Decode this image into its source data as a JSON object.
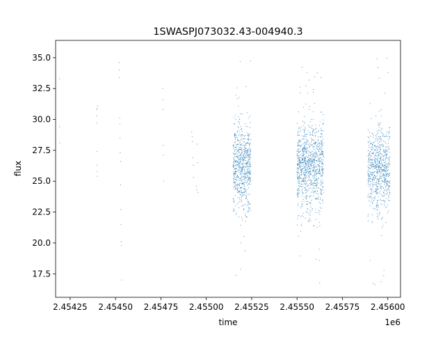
{
  "chart_data": {
    "type": "scatter",
    "title": "1SWASPJ073032.43-004940.3",
    "xlabel": "time",
    "ylabel": "flux",
    "x_offset_label": "1e6",
    "xlim": [
      2454170,
      2456070
    ],
    "ylim": [
      15.6,
      36.4
    ],
    "x_ticks": [
      2454250,
      2454500,
      2454750,
      2455000,
      2455250,
      2455500,
      2455750,
      2456000
    ],
    "x_tick_labels": [
      "2.45425",
      "2.45450",
      "2.45475",
      "2.45500",
      "2.45525",
      "2.45550",
      "2.45575",
      "2.45600"
    ],
    "y_ticks": [
      17.5,
      20.0,
      22.5,
      25.0,
      27.5,
      30.0,
      32.5,
      35.0
    ],
    "y_tick_labels": [
      "17.5",
      "20.0",
      "22.5",
      "25.0",
      "27.5",
      "30.0",
      "32.5",
      "35.0"
    ],
    "grid": false,
    "marker_color": "#1f77b4",
    "series": [
      {
        "x": [
          2454192,
          2454192,
          2454193,
          2454395,
          2454396,
          2454397,
          2454398,
          2454398,
          2454399,
          2454400,
          2454400,
          2454401,
          2454520,
          2454521,
          2454522,
          2454523,
          2454524,
          2454525,
          2454526,
          2454527,
          2454528,
          2454529,
          2454530,
          2454531,
          2454533,
          2454534,
          2454760,
          2454761,
          2454762,
          2454763,
          2454764,
          2454765,
          2454920,
          2454922,
          2454924,
          2454926,
          2454928,
          2454930,
          2454945,
          2454948,
          2454950,
          2454952,
          2454955
        ],
        "y": [
          33.3,
          29.4,
          28.1,
          30.8,
          30.3,
          29.7,
          27.4,
          26.3,
          25.8,
          25.4,
          30.9,
          31.1,
          34.6,
          34.0,
          33.4,
          30.1,
          29.6,
          28.5,
          27.3,
          26.6,
          24.7,
          22.7,
          21.5,
          20.1,
          19.8,
          17.0,
          32.5,
          31.6,
          30.8,
          27.9,
          27.1,
          25.0,
          29.0,
          28.6,
          28.2,
          26.9,
          26.3,
          25.3,
          24.6,
          24.3,
          28.0,
          26.5,
          24.1
        ]
      }
    ],
    "clusters": [
      {
        "x_start": 2455148,
        "x_end": 2455245,
        "y_center": 26.2,
        "y_spread": 1.7,
        "n": 700,
        "outlier_low": 16.7,
        "outlier_high": 35.5
      },
      {
        "x_start": 2455500,
        "x_end": 2455645,
        "y_center": 26.1,
        "y_spread": 1.8,
        "n": 1000,
        "outlier_low": 16.7,
        "outlier_high": 35.0
      },
      {
        "x_start": 2455890,
        "x_end": 2456012,
        "y_center": 26.0,
        "y_spread": 1.7,
        "n": 750,
        "outlier_low": 16.4,
        "outlier_high": 35.4
      }
    ]
  }
}
